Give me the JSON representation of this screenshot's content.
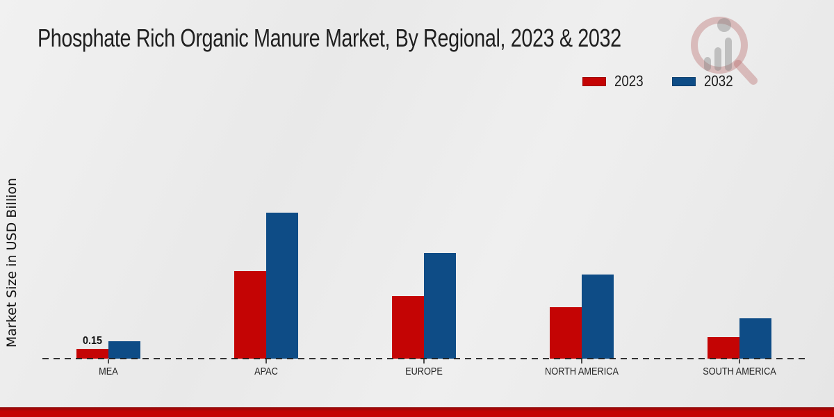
{
  "title": "Phosphate Rich Organic Manure Market, By Regional, 2023 & 2032",
  "ylabel": "Market Size in USD Billion",
  "legend": {
    "items": [
      {
        "label": "2023",
        "color": "#c40404"
      },
      {
        "label": "2032",
        "color": "#0e4c86"
      }
    ]
  },
  "watermark_name": "magnifier-bar-chart-logo",
  "footer_color": "#c40000",
  "chart_data": {
    "type": "bar",
    "title": "Phosphate Rich Organic Manure Market, By Regional, 2023 & 2032",
    "xlabel": "",
    "ylabel": "Market Size in USD Billion",
    "categories": [
      "MEA",
      "APAC",
      "EUROPE",
      "NORTH AMERICA",
      "SOUTH AMERICA"
    ],
    "series": [
      {
        "name": "2023",
        "color": "#c40404",
        "values": [
          0.15,
          1.35,
          0.96,
          0.79,
          0.33
        ]
      },
      {
        "name": "2032",
        "color": "#0e4c86",
        "values": [
          0.27,
          2.25,
          1.63,
          1.3,
          0.62
        ]
      }
    ],
    "data_labels": [
      {
        "series": "2023",
        "category": "MEA",
        "text": "0.15"
      }
    ],
    "ylim": [
      0,
      2.4
    ],
    "axis_style": "dashed-baseline-only",
    "grid": false,
    "legend_position": "top-right"
  }
}
